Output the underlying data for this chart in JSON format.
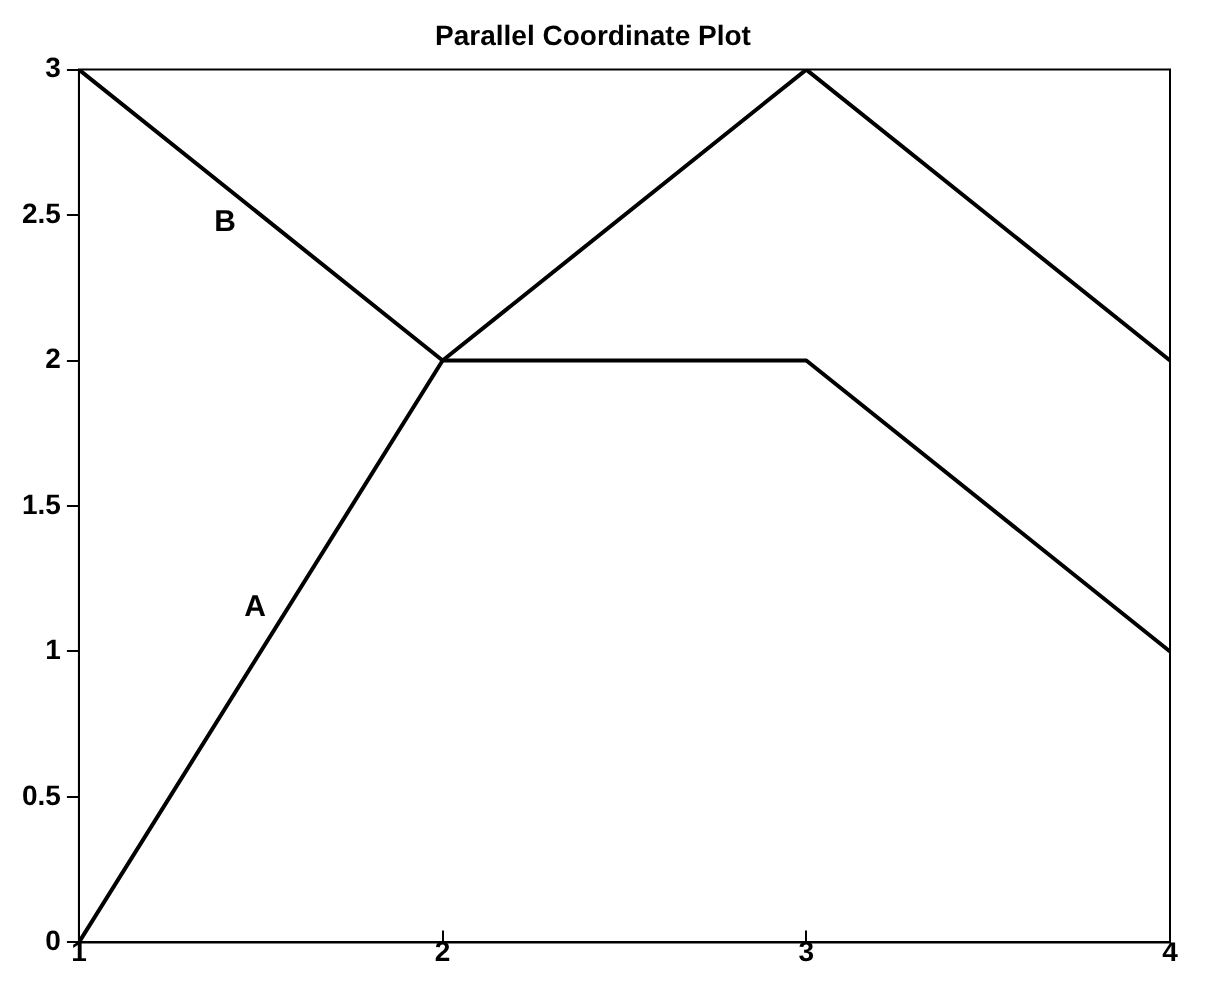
{
  "chart_data": {
    "type": "line",
    "title": "Parallel Coordinate Plot",
    "x": [
      1,
      2,
      3,
      4
    ],
    "series": [
      {
        "name": "A",
        "color": "#000000",
        "values": [
          0,
          2,
          3,
          2
        ]
      },
      {
        "name": "B",
        "color": "#000000",
        "values": [
          3,
          2,
          2,
          1
        ]
      }
    ],
    "xlim": [
      1,
      4
    ],
    "xticks": [
      1,
      2,
      3,
      4
    ],
    "ylim": [
      0,
      3
    ],
    "yticks": [
      0,
      0.5,
      1,
      1.5,
      2,
      2.5,
      3
    ],
    "grid": false,
    "legend": false,
    "marker": "none",
    "line_style": "solid"
  }
}
